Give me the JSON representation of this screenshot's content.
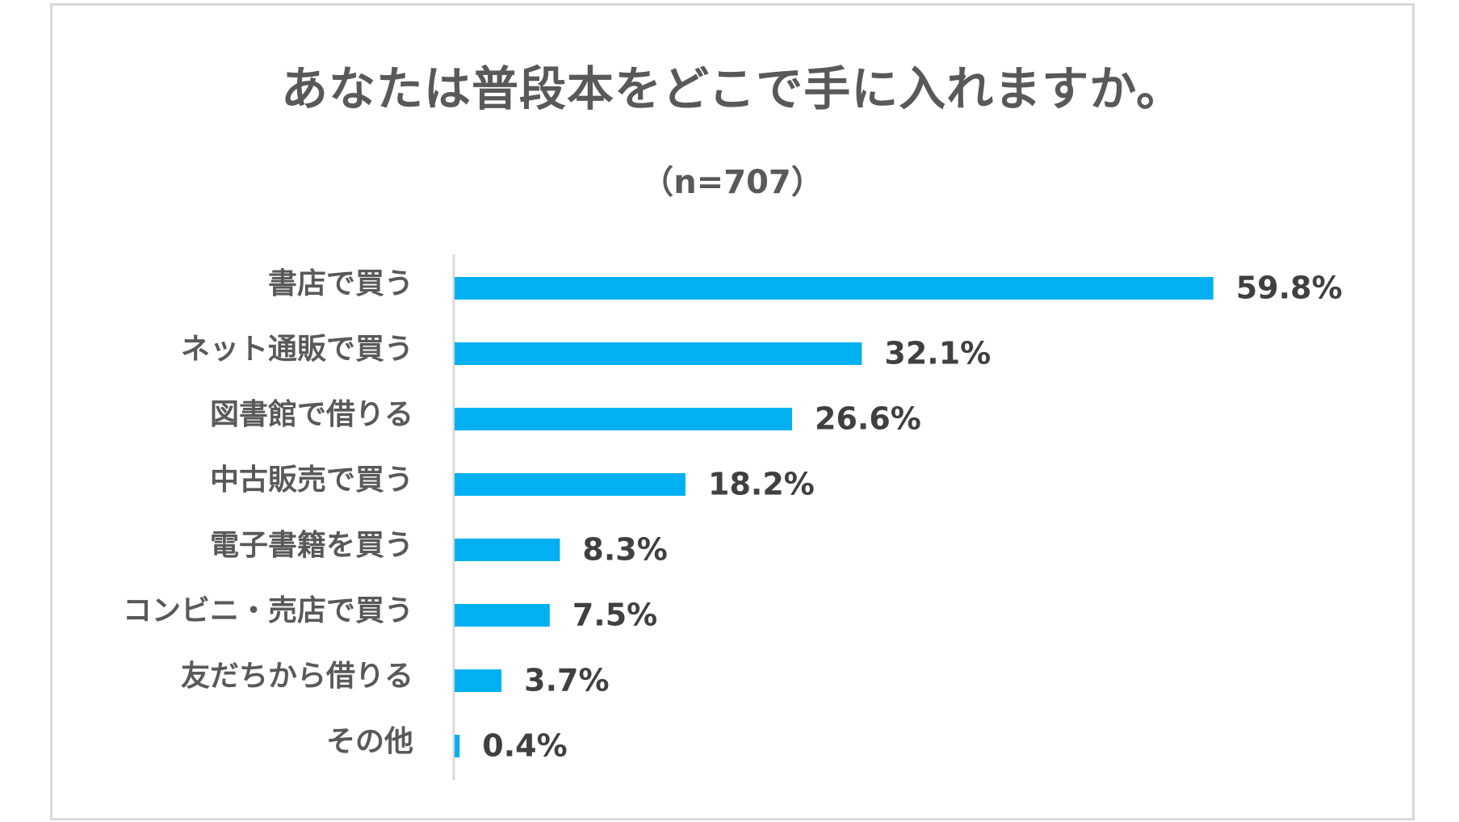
{
  "chart_data": {
    "type": "bar",
    "orientation": "horizontal",
    "title": "あなたは普段本をどこで手に入れますか。",
    "subtitle": "（n=707）",
    "categories": [
      "書店で買う",
      "ネット通販で買う",
      "図書館で借りる",
      "中古販売で買う",
      "電子書籍を買う",
      "コンビニ・売店で買う",
      "友だちから借りる",
      "その他"
    ],
    "values": [
      59.8,
      32.1,
      26.6,
      18.2,
      8.3,
      7.5,
      3.7,
      0.4
    ],
    "value_labels": [
      "59.8%",
      "32.1%",
      "26.6%",
      "18.2%",
      "8.3%",
      "7.5%",
      "3.7%",
      "0.4%"
    ],
    "xlim": [
      0,
      70
    ],
    "grid": false,
    "legend": "none",
    "bar_color": "#00b0f0"
  }
}
